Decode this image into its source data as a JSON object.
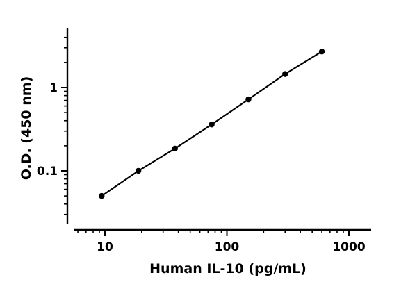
{
  "chart_data": {
    "type": "scatter",
    "title": "",
    "xlabel": "Human IL-10 (pg/mL)",
    "ylabel": "O.D. (450 nm)",
    "x_scale": "log",
    "y_scale": "log",
    "xlim": [
      5,
      1500
    ],
    "ylim": [
      0.02,
      4.5
    ],
    "x_ticks": [
      {
        "value": 10,
        "label": "10"
      },
      {
        "value": 100,
        "label": "100"
      },
      {
        "value": 1000,
        "label": "1000"
      }
    ],
    "y_ticks": [
      {
        "value": 0.1,
        "label": "0.1"
      },
      {
        "value": 1,
        "label": "1"
      }
    ],
    "grid": false,
    "legend": "none",
    "series": [
      {
        "x": [
          9.4,
          18.8,
          37.5,
          75,
          150,
          300,
          600
        ],
        "y": [
          0.05,
          0.1,
          0.185,
          0.36,
          0.72,
          1.45,
          2.7
        ],
        "has_fit_line": true,
        "color": "#000000"
      }
    ]
  }
}
